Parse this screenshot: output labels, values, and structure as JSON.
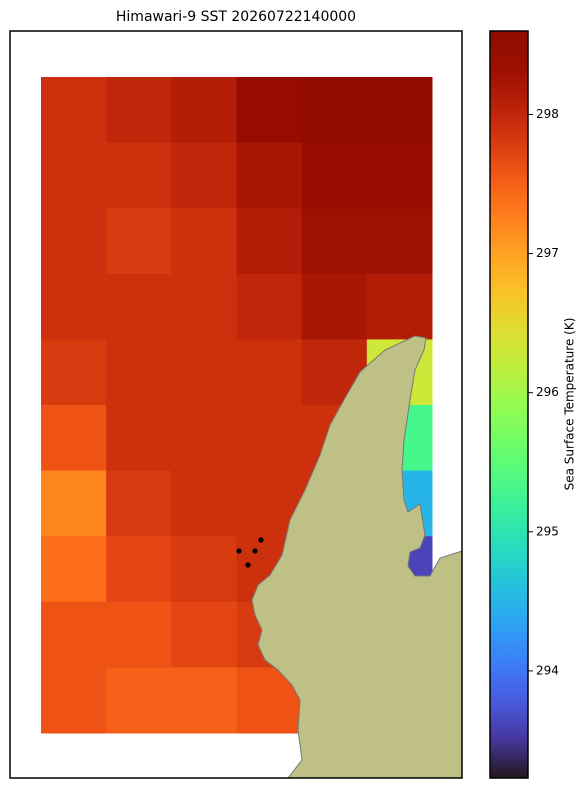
{
  "title": "Himawari-9 SST 20260722140000",
  "heatmap": {
    "type": "heatmap",
    "values": [
      [
        297.9,
        298.0,
        298.1,
        298.4,
        298.5,
        298.5
      ],
      [
        297.9,
        297.9,
        298.0,
        298.2,
        298.4,
        298.4
      ],
      [
        297.9,
        297.8,
        297.9,
        298.1,
        298.3,
        298.3
      ],
      [
        297.9,
        297.9,
        297.9,
        298.0,
        298.2,
        298.1
      ],
      [
        297.8,
        297.9,
        297.9,
        297.9,
        298.0,
        296.3
      ],
      [
        297.6,
        297.9,
        297.9,
        297.9,
        297.9,
        295.3
      ],
      [
        297.2,
        297.8,
        297.9,
        297.9,
        297.9,
        294.5
      ],
      [
        297.4,
        297.7,
        297.8,
        297.9,
        null,
        293.6
      ],
      [
        297.6,
        297.6,
        297.7,
        297.8,
        null,
        null
      ],
      [
        297.6,
        297.5,
        297.5,
        297.6,
        null,
        null
      ]
    ]
  },
  "colorbar": {
    "label": "Sea Surface Temperature (K)",
    "lim": [
      293.23,
      298.6
    ],
    "ticks": [
      294,
      295,
      296,
      297,
      298
    ]
  }
}
